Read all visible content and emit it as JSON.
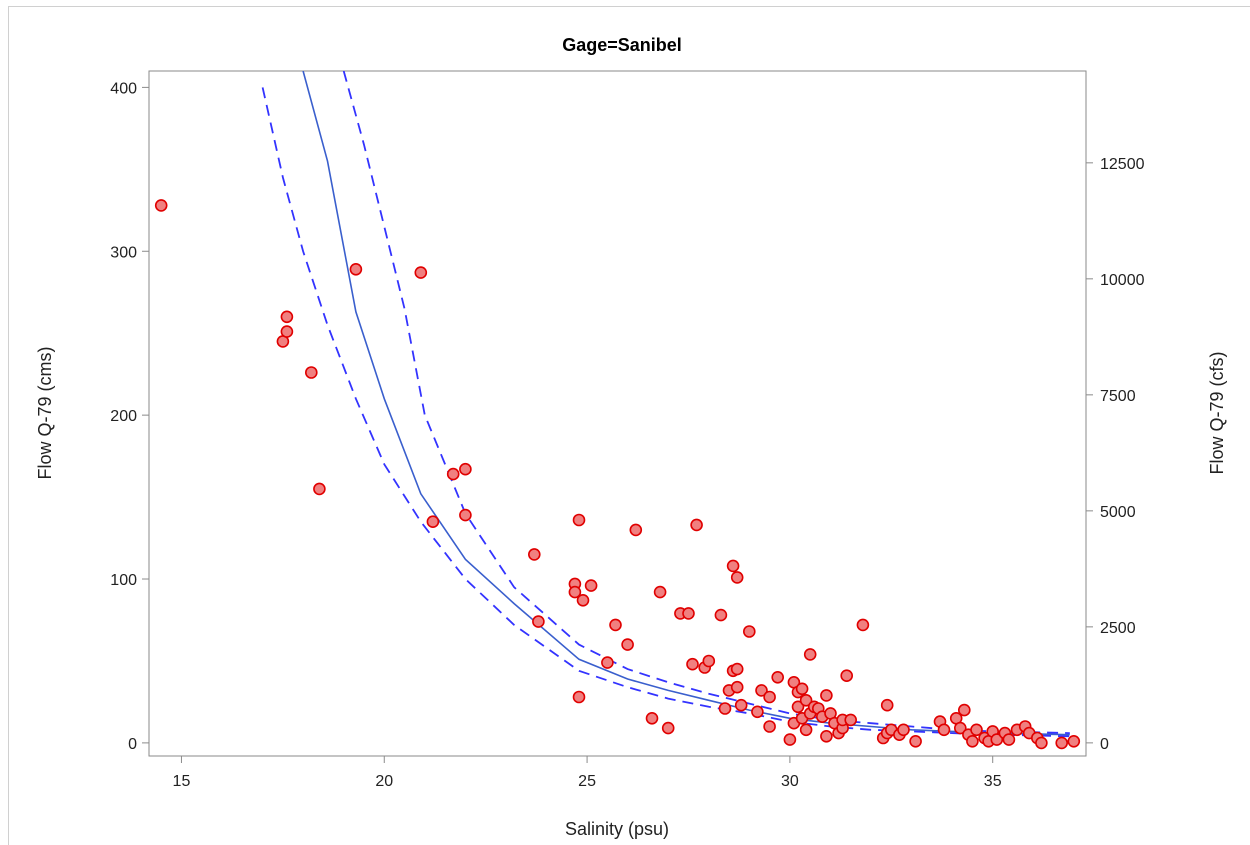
{
  "chart_data": {
    "type": "scatter",
    "title": "Gage=Sanibel",
    "xlabel": "Salinity (psu)",
    "ylabel": "Flow Q-79 (cms)",
    "y2label": "Flow Q-79 (cfs)",
    "xlim": [
      14.2,
      37.3
    ],
    "ylim": [
      -8,
      410
    ],
    "y2lim": [
      -283,
      14479
    ],
    "x_ticks": [
      15,
      20,
      25,
      30,
      35
    ],
    "y_ticks": [
      0,
      100,
      200,
      300,
      400
    ],
    "y2_ticks": [
      0,
      2500,
      5000,
      7500,
      10000,
      12500
    ],
    "grid": false,
    "colors": {
      "points_fill": "#f08080",
      "points_stroke": "#e00000",
      "fit": "#3a5fcd",
      "ci": "#3333ff"
    },
    "series": [
      {
        "type": "scatter",
        "points": [
          [
            14.5,
            328
          ],
          [
            17.5,
            245
          ],
          [
            17.6,
            251
          ],
          [
            17.6,
            260
          ],
          [
            18.2,
            226
          ],
          [
            18.4,
            155
          ],
          [
            19.3,
            289
          ],
          [
            20.9,
            287
          ],
          [
            21.2,
            135
          ],
          [
            21.7,
            164
          ],
          [
            22.0,
            167
          ],
          [
            22.0,
            139
          ],
          [
            23.7,
            115
          ],
          [
            23.8,
            74
          ],
          [
            24.7,
            97
          ],
          [
            24.7,
            92
          ],
          [
            24.8,
            136
          ],
          [
            24.8,
            28
          ],
          [
            24.9,
            87
          ],
          [
            25.1,
            96
          ],
          [
            25.5,
            49
          ],
          [
            25.7,
            72
          ],
          [
            26.0,
            60
          ],
          [
            26.2,
            130
          ],
          [
            26.6,
            15
          ],
          [
            26.8,
            92
          ],
          [
            27.0,
            9
          ],
          [
            27.3,
            79
          ],
          [
            27.5,
            79
          ],
          [
            27.6,
            48
          ],
          [
            27.7,
            133
          ],
          [
            27.9,
            46
          ],
          [
            28.0,
            50
          ],
          [
            28.3,
            78
          ],
          [
            28.4,
            21
          ],
          [
            28.5,
            32
          ],
          [
            28.6,
            44
          ],
          [
            28.6,
            108
          ],
          [
            28.7,
            101
          ],
          [
            28.7,
            45
          ],
          [
            28.7,
            34
          ],
          [
            28.8,
            23
          ],
          [
            29.0,
            68
          ],
          [
            29.2,
            19
          ],
          [
            29.3,
            32
          ],
          [
            29.5,
            28
          ],
          [
            29.5,
            10
          ],
          [
            29.7,
            40
          ],
          [
            30.0,
            2
          ],
          [
            30.1,
            12
          ],
          [
            30.1,
            37
          ],
          [
            30.2,
            31
          ],
          [
            30.2,
            22
          ],
          [
            30.3,
            33
          ],
          [
            30.3,
            15
          ],
          [
            30.4,
            26
          ],
          [
            30.4,
            8
          ],
          [
            30.5,
            54
          ],
          [
            30.5,
            18
          ],
          [
            30.6,
            22
          ],
          [
            30.7,
            21
          ],
          [
            30.8,
            16
          ],
          [
            30.9,
            29
          ],
          [
            30.9,
            4
          ],
          [
            31.0,
            18
          ],
          [
            31.1,
            12
          ],
          [
            31.2,
            6
          ],
          [
            31.3,
            9
          ],
          [
            31.3,
            14
          ],
          [
            31.4,
            41
          ],
          [
            31.5,
            14
          ],
          [
            31.8,
            72
          ],
          [
            32.3,
            3
          ],
          [
            32.4,
            23
          ],
          [
            32.4,
            6
          ],
          [
            32.5,
            8
          ],
          [
            32.7,
            5
          ],
          [
            32.8,
            8
          ],
          [
            33.1,
            1
          ],
          [
            33.7,
            13
          ],
          [
            33.8,
            8
          ],
          [
            34.1,
            15
          ],
          [
            34.2,
            9
          ],
          [
            34.3,
            20
          ],
          [
            34.4,
            5
          ],
          [
            34.5,
            1
          ],
          [
            34.6,
            8
          ],
          [
            34.8,
            3
          ],
          [
            34.9,
            1
          ],
          [
            35.0,
            7
          ],
          [
            35.1,
            2
          ],
          [
            35.3,
            6
          ],
          [
            35.4,
            2
          ],
          [
            35.6,
            8
          ],
          [
            35.8,
            10
          ],
          [
            35.9,
            6
          ],
          [
            36.1,
            3
          ],
          [
            36.2,
            0
          ],
          [
            36.7,
            0
          ],
          [
            37.0,
            1
          ]
        ]
      },
      {
        "type": "line",
        "x": [
          18.0,
          18.6,
          19.3,
          20.0,
          20.9,
          22.0,
          23.2,
          24.8,
          26.0,
          27.0,
          28.0,
          29.0,
          30.0,
          31.0,
          32.0,
          33.0,
          34.0,
          35.0,
          36.0,
          36.9
        ],
        "y": [
          410,
          355,
          263,
          210,
          152,
          112,
          85,
          51,
          39,
          32,
          26,
          20,
          15,
          12,
          10,
          8,
          7,
          6,
          5.5,
          5
        ]
      },
      {
        "type": "line",
        "style": "dashed",
        "x": [
          17.0,
          17.5,
          18.0,
          18.6,
          19.3,
          20.0,
          20.9,
          22.0,
          23.2,
          24.8,
          26.0,
          27.0,
          28.0,
          29.0,
          30.0,
          31.0,
          32.0,
          33.0,
          34.0,
          35.0,
          36.0,
          36.9
        ],
        "y": [
          400,
          345,
          300,
          255,
          210,
          170,
          135,
          100,
          72,
          44,
          34,
          27,
          22,
          18,
          13,
          10,
          8,
          7,
          6,
          5,
          4.5,
          4
        ]
      },
      {
        "type": "line",
        "style": "dashed",
        "x": [
          19.0,
          19.5,
          20.0,
          20.5,
          21.0,
          22.0,
          23.2,
          24.8,
          26.0,
          27.0,
          28.0,
          29.0,
          30.0,
          31.0,
          32.0,
          33.0,
          34.0,
          35.0,
          36.0,
          36.9
        ],
        "y": [
          410,
          365,
          315,
          265,
          200,
          140,
          95,
          60,
          45,
          37,
          30,
          24,
          18,
          14,
          12,
          10,
          8,
          7,
          6.5,
          6
        ]
      }
    ]
  }
}
